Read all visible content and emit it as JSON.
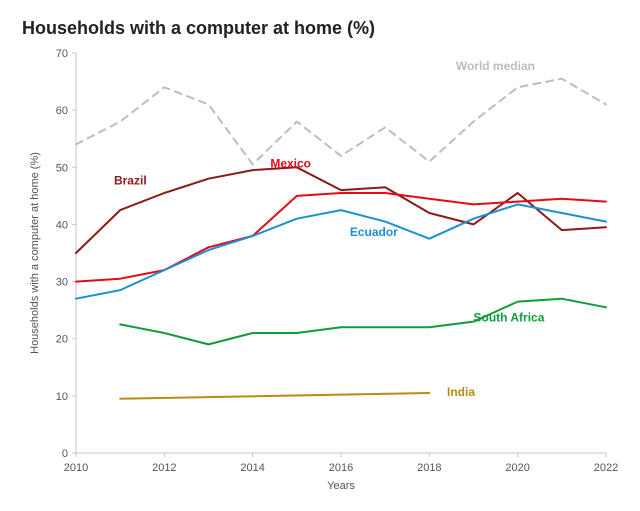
{
  "chart": {
    "type": "line",
    "title": "Households with a computer at home (%)",
    "title_fontsize": 18,
    "title_fontweight": 700,
    "background_color": "#ffffff",
    "plot_background": "#ffffff",
    "grid_color": "#c7c7c7",
    "axis_line_color": "#c7c7c7",
    "x": {
      "label": "Years",
      "min": 2010,
      "max": 2022,
      "ticks": [
        2010,
        2012,
        2014,
        2016,
        2018,
        2020,
        2022
      ],
      "tick_fontsize": 11,
      "label_fontsize": 11
    },
    "y": {
      "label": "Households with a computer at home (%)",
      "min": 0,
      "max": 70,
      "ticks": [
        0,
        10,
        20,
        30,
        40,
        50,
        60,
        70
      ],
      "tick_fontsize": 11,
      "label_fontsize": 11
    },
    "line_width": 2,
    "series": [
      {
        "name": "World median",
        "color": "#bdbdbd",
        "dash": "7,6",
        "label_anchor": "start",
        "label_at": {
          "x": 2018.6,
          "y": 67
        },
        "points": [
          {
            "x": 2010,
            "y": 54
          },
          {
            "x": 2011,
            "y": 58
          },
          {
            "x": 2012,
            "y": 64
          },
          {
            "x": 2013,
            "y": 61
          },
          {
            "x": 2014,
            "y": 50.5
          },
          {
            "x": 2015,
            "y": 58
          },
          {
            "x": 2016,
            "y": 52
          },
          {
            "x": 2017,
            "y": 57
          },
          {
            "x": 2018,
            "y": 51
          },
          {
            "x": 2019,
            "y": 58
          },
          {
            "x": 2020,
            "y": 64
          },
          {
            "x": 2021,
            "y": 65.5
          },
          {
            "x": 2022,
            "y": 61
          }
        ]
      },
      {
        "name": "Brazil",
        "color": "#8b1a1a",
        "dash": "",
        "label_anchor": "end",
        "label_at": {
          "x": 2011.6,
          "y": 47
        },
        "points": [
          {
            "x": 2010,
            "y": 35
          },
          {
            "x": 2011,
            "y": 42.5
          },
          {
            "x": 2012,
            "y": 45.5
          },
          {
            "x": 2013,
            "y": 48
          },
          {
            "x": 2014,
            "y": 49.5
          },
          {
            "x": 2015,
            "y": 50
          },
          {
            "x": 2016,
            "y": 46
          },
          {
            "x": 2017,
            "y": 46.5
          },
          {
            "x": 2018,
            "y": 42
          },
          {
            "x": 2019,
            "y": 40
          },
          {
            "x": 2020,
            "y": 45.5
          },
          {
            "x": 2021,
            "y": 39
          },
          {
            "x": 2022,
            "y": 39.5
          }
        ]
      },
      {
        "name": "Mexico",
        "color": "#e30b17",
        "dash": "",
        "label_anchor": "start",
        "label_at": {
          "x": 2014.4,
          "y": 50
        },
        "points": [
          {
            "x": 2010,
            "y": 30
          },
          {
            "x": 2011,
            "y": 30.5
          },
          {
            "x": 2012,
            "y": 32
          },
          {
            "x": 2013,
            "y": 36
          },
          {
            "x": 2014,
            "y": 38
          },
          {
            "x": 2015,
            "y": 45
          },
          {
            "x": 2016,
            "y": 45.5
          },
          {
            "x": 2017,
            "y": 45.5
          },
          {
            "x": 2018,
            "y": 44.5
          },
          {
            "x": 2019,
            "y": 43.5
          },
          {
            "x": 2020,
            "y": 44
          },
          {
            "x": 2021,
            "y": 44.5
          },
          {
            "x": 2022,
            "y": 44
          }
        ]
      },
      {
        "name": "Ecuador",
        "color": "#1e90d2",
        "dash": "",
        "label_anchor": "start",
        "label_at": {
          "x": 2016.2,
          "y": 38
        },
        "points": [
          {
            "x": 2010,
            "y": 27
          },
          {
            "x": 2011,
            "y": 28.5
          },
          {
            "x": 2012,
            "y": 32
          },
          {
            "x": 2013,
            "y": 35.5
          },
          {
            "x": 2014,
            "y": 38
          },
          {
            "x": 2015,
            "y": 41
          },
          {
            "x": 2016,
            "y": 42.5
          },
          {
            "x": 2017,
            "y": 40.5
          },
          {
            "x": 2018,
            "y": 37.5
          },
          {
            "x": 2019,
            "y": 41
          },
          {
            "x": 2020,
            "y": 43.5
          },
          {
            "x": 2021,
            "y": 42
          },
          {
            "x": 2022,
            "y": 40.5
          }
        ]
      },
      {
        "name": "South Africa",
        "color": "#129b3a",
        "dash": "",
        "label_anchor": "start",
        "label_at": {
          "x": 2019,
          "y": 23
        },
        "points": [
          {
            "x": 2011,
            "y": 22.5
          },
          {
            "x": 2012,
            "y": 21
          },
          {
            "x": 2013,
            "y": 19
          },
          {
            "x": 2014,
            "y": 21
          },
          {
            "x": 2015,
            "y": 21
          },
          {
            "x": 2016,
            "y": 22
          },
          {
            "x": 2017,
            "y": 22
          },
          {
            "x": 2018,
            "y": 22
          },
          {
            "x": 2019,
            "y": 23
          },
          {
            "x": 2020,
            "y": 26.5
          },
          {
            "x": 2021,
            "y": 27
          },
          {
            "x": 2022,
            "y": 25.5
          }
        ]
      },
      {
        "name": "India",
        "color": "#b88a17",
        "dash": "",
        "label_anchor": "start",
        "label_at": {
          "x": 2018.4,
          "y": 10
        },
        "points": [
          {
            "x": 2011,
            "y": 9.5
          },
          {
            "x": 2018,
            "y": 10.5
          }
        ]
      }
    ]
  }
}
